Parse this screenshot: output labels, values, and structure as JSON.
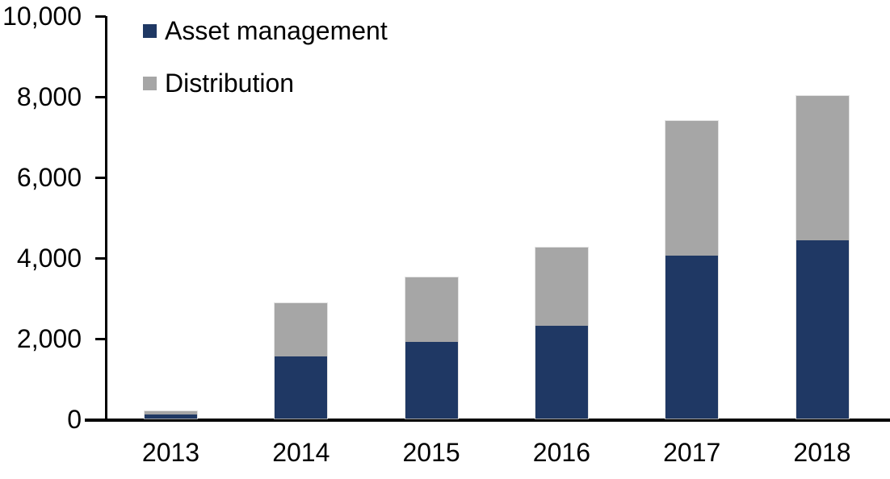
{
  "chart_data": {
    "type": "bar",
    "stacked": true,
    "title": "",
    "xlabel": "",
    "ylabel": "",
    "categories": [
      "2013",
      "2014",
      "2015",
      "2016",
      "2017",
      "2018"
    ],
    "series": [
      {
        "name": "Asset management",
        "color": "#1F3864",
        "values": [
          100,
          1550,
          1900,
          2300,
          4050,
          4420
        ]
      },
      {
        "name": "Distribution",
        "color": "#A6A6A6",
        "values": [
          80,
          1310,
          1600,
          1950,
          3330,
          3580
        ]
      }
    ],
    "totals": [
      180,
      2860,
      3500,
      4250,
      7380,
      8000
    ],
    "ylim": [
      0,
      10000
    ],
    "yticks": [
      0,
      2000,
      4000,
      6000,
      8000,
      10000
    ],
    "ytick_labels": [
      "0",
      "2,000",
      "4,000",
      "6,000",
      "8,000",
      "10,000"
    ],
    "grid": false,
    "legend_position": "top-left",
    "axis_color": "#000000",
    "background_color": "#FFFFFF"
  }
}
